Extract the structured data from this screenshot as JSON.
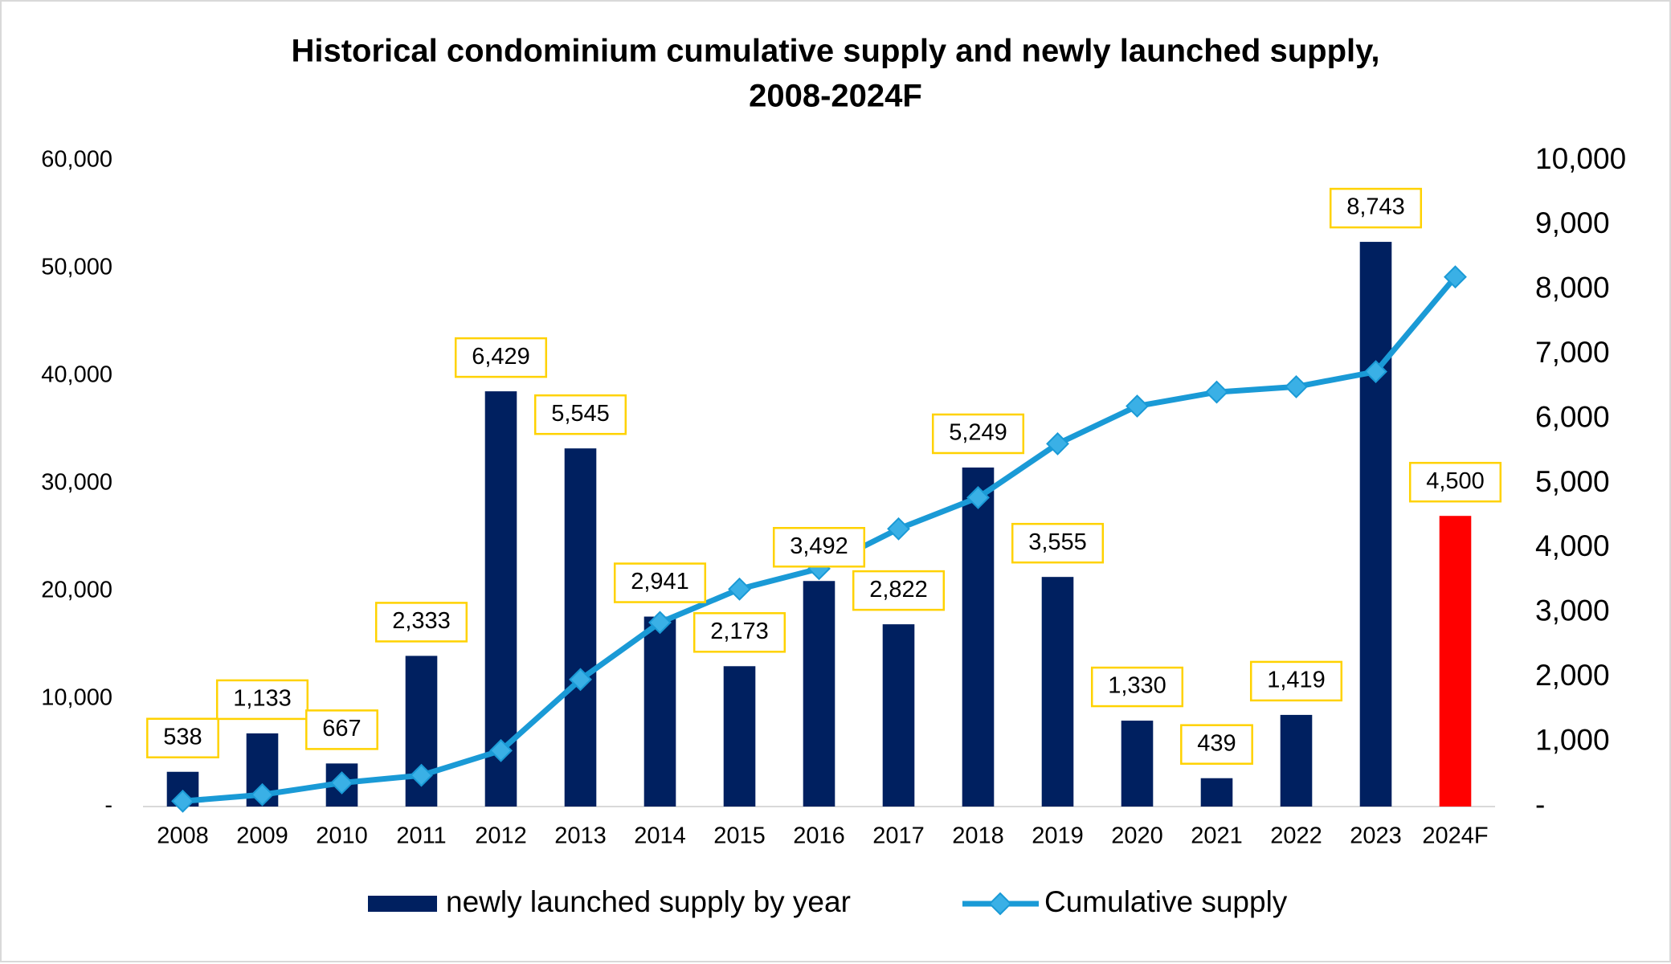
{
  "chart_data": {
    "type": "bar",
    "title": [
      "Historical condominium cumulative supply and newly launched supply,",
      "2008-2024F"
    ],
    "categories": [
      "2008",
      "2009",
      "2010",
      "2011",
      "2012",
      "2013",
      "2014",
      "2015",
      "2016",
      "2017",
      "2018",
      "2019",
      "2020",
      "2021",
      "2022",
      "2023",
      "2024F"
    ],
    "series": [
      {
        "name": "newly launched supply by year",
        "type": "bar",
        "axis": "y2",
        "color": "#002060",
        "colors": [
          "#002060",
          "#002060",
          "#002060",
          "#002060",
          "#002060",
          "#002060",
          "#002060",
          "#002060",
          "#002060",
          "#002060",
          "#002060",
          "#002060",
          "#002060",
          "#002060",
          "#002060",
          "#002060",
          "#ff0000"
        ],
        "values": [
          538,
          1133,
          667,
          2333,
          6429,
          5545,
          2941,
          2173,
          3492,
          2822,
          5249,
          3555,
          1330,
          439,
          1419,
          8743,
          4500
        ],
        "value_labels": [
          "538",
          "1,133",
          "667",
          "2,333",
          "6,429",
          "5,545",
          "2,941",
          "2,173",
          "3,492",
          "2,822",
          "5,249",
          "3,555",
          "1,330",
          "439",
          "1,419",
          "8,743",
          "4,500"
        ]
      },
      {
        "name": "Cumulative supply",
        "type": "line",
        "axis": "y",
        "color": "#1a9ad6",
        "values": [
          500,
          1100,
          2200,
          2900,
          5200,
          11800,
          17100,
          20200,
          22100,
          25800,
          28700,
          33700,
          37200,
          38500,
          39000,
          40400,
          49200
        ]
      }
    ],
    "ylim": [
      0,
      60000
    ],
    "yticks": [
      {
        "value": 0,
        "label": "-"
      },
      {
        "value": 10000,
        "label": "10,000"
      },
      {
        "value": 20000,
        "label": "20,000"
      },
      {
        "value": 30000,
        "label": "30,000"
      },
      {
        "value": 40000,
        "label": "40,000"
      },
      {
        "value": 50000,
        "label": "50,000"
      },
      {
        "value": 60000,
        "label": "60,000"
      }
    ],
    "y2lim": [
      0,
      10000
    ],
    "y2ticks": [
      {
        "value": 0,
        "label": "-"
      },
      {
        "value": 1000,
        "label": "1,000"
      },
      {
        "value": 2000,
        "label": "2,000"
      },
      {
        "value": 3000,
        "label": "3,000"
      },
      {
        "value": 4000,
        "label": "4,000"
      },
      {
        "value": 5000,
        "label": "5,000"
      },
      {
        "value": 6000,
        "label": "6,000"
      },
      {
        "value": 7000,
        "label": "7,000"
      },
      {
        "value": 8000,
        "label": "8,000"
      },
      {
        "value": 9000,
        "label": "9,000"
      },
      {
        "value": 10000,
        "label": "10,000"
      }
    ],
    "label_box_color": "#ffd200",
    "legend": "bottom"
  }
}
